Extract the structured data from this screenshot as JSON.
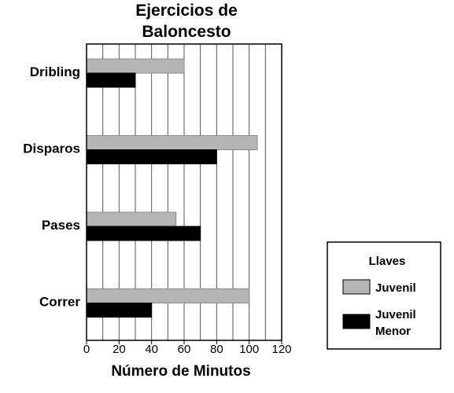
{
  "chart_data": {
    "type": "bar",
    "orientation": "horizontal",
    "title_lines": [
      "Ejercicios de",
      "Baloncesto"
    ],
    "xlabel": "Número de Minutos",
    "ylabel": "",
    "categories": [
      "Dribling",
      "Disparos",
      "Pases",
      "Correr"
    ],
    "series": [
      {
        "name": "Juvenil",
        "color": "#b5b5b5",
        "values": [
          60,
          105,
          55,
          100
        ]
      },
      {
        "name": "Juvenil Menor",
        "name_lines": [
          "Juvenil",
          "Menor"
        ],
        "color": "#000000",
        "values": [
          30,
          80,
          70,
          40
        ]
      }
    ],
    "xlim": [
      0,
      120
    ],
    "xticks": [
      "0",
      "20",
      "40",
      "60",
      "80",
      "100",
      "120"
    ],
    "minor_step": 10,
    "grid": true,
    "legend": {
      "title": "Llaves",
      "position": "bottom-right"
    }
  }
}
